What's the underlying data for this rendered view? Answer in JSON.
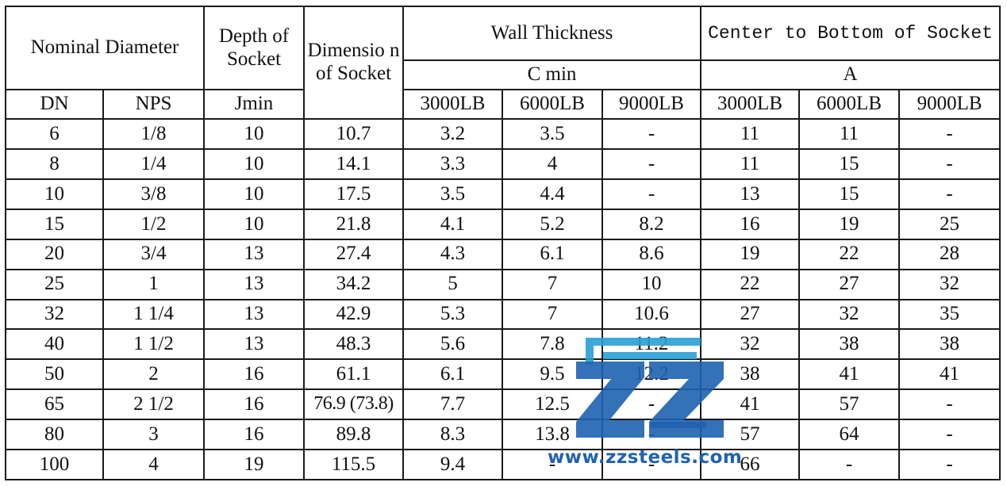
{
  "headers": {
    "nominal_diameter": "Nominal Diameter",
    "depth_of_socket": "Depth of Socket",
    "dimension_of_socket": "Dimensio n of Socket",
    "wall_thickness": "Wall Thickness",
    "center_to_bottom": "Center to Bottom of Socket",
    "c_min": "C min",
    "a": "A",
    "dn": "DN",
    "nps": "NPS",
    "jmin": "Jmin",
    "wt_3000": "3000LB",
    "wt_6000": "6000LB",
    "wt_9000": "9000LB",
    "cb_3000": "3000LB",
    "cb_6000": "6000LB",
    "cb_9000": "9000LB"
  },
  "rows": [
    [
      "6",
      "1/8",
      "10",
      "10.7",
      "3.2",
      "3.5",
      "-",
      "11",
      "11",
      "-"
    ],
    [
      "8",
      "1/4",
      "10",
      "14.1",
      "3.3",
      "4",
      "-",
      "11",
      "15",
      "-"
    ],
    [
      "10",
      "3/8",
      "10",
      "17.5",
      "3.5",
      "4.4",
      "-",
      "13",
      "15",
      "-"
    ],
    [
      "15",
      "1/2",
      "10",
      "21.8",
      "4.1",
      "5.2",
      "8.2",
      "16",
      "19",
      "25"
    ],
    [
      "20",
      "3/4",
      "13",
      "27.4",
      "4.3",
      "6.1",
      "8.6",
      "19",
      "22",
      "28"
    ],
    [
      "25",
      "1",
      "13",
      "34.2",
      "5",
      "7",
      "10",
      "22",
      "27",
      "32"
    ],
    [
      "32",
      "1 1/4",
      "13",
      "42.9",
      "5.3",
      "7",
      "10.6",
      "27",
      "32",
      "35"
    ],
    [
      "40",
      "1 1/2",
      "13",
      "48.3",
      "5.6",
      "7.8",
      "11.2",
      "32",
      "38",
      "38"
    ],
    [
      "50",
      "2",
      "16",
      "61.1",
      "6.1",
      "9.5",
      "12.2",
      "38",
      "41",
      "41"
    ],
    [
      "65",
      "2 1/2",
      "16",
      "76.9 (73.8)",
      "7.7",
      "12.5",
      "-",
      "41",
      "57",
      "-"
    ],
    [
      "80",
      "3",
      "16",
      "89.8",
      "8.3",
      "13.8",
      "-",
      "57",
      "64",
      "-"
    ],
    [
      "100",
      "4",
      "19",
      "115.5",
      "9.4",
      "-",
      "-",
      "66",
      "-",
      "-"
    ]
  ],
  "watermark": {
    "url": "www.zzsteels.com",
    "logo_colors": [
      "#2a9fd6",
      "#1f62b0"
    ]
  }
}
